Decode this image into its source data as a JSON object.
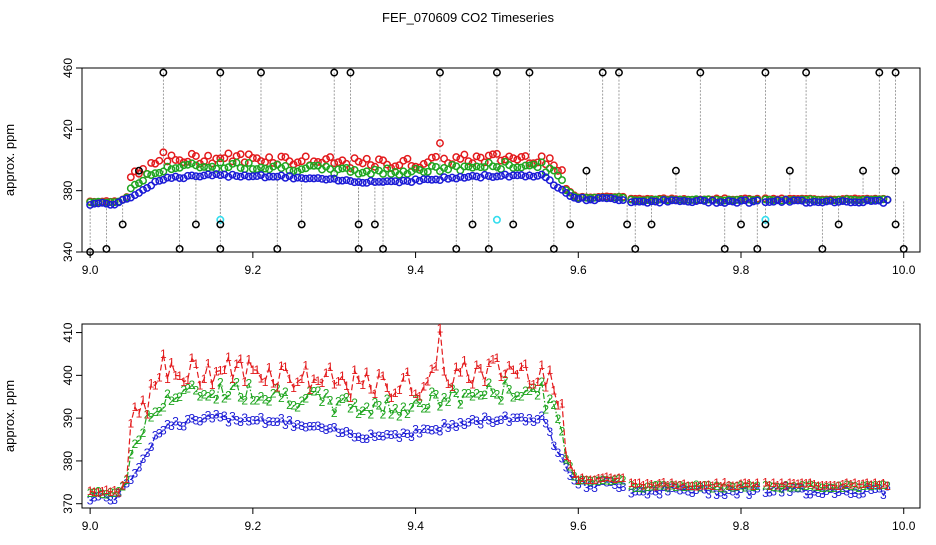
{
  "title": "FEF_070609  CO2 Timeseries",
  "colors": {
    "s1": "#e31a1c",
    "s2": "#1fa51f",
    "s3": "#1b1bd6",
    "outlier": "#000000",
    "flag": "#33ddee",
    "connector": "#888888"
  },
  "chart_data": [
    {
      "type": "scatter",
      "ylabel": "approx. ppm",
      "xlim": [
        8.99,
        10.02
      ],
      "ylim": [
        340,
        460
      ],
      "xticks": [
        "9.0",
        "9.2",
        "9.4",
        "9.6",
        "9.8",
        "10.0"
      ],
      "yticks": [
        "340",
        "380",
        "420",
        "460"
      ],
      "grid": false,
      "outlier_points": [
        [
          9.0,
          340
        ],
        [
          9.02,
          342
        ],
        [
          9.04,
          358
        ],
        [
          9.06,
          393
        ],
        [
          9.09,
          457
        ],
        [
          9.11,
          342
        ],
        [
          9.13,
          358
        ],
        [
          9.16,
          342
        ],
        [
          9.16,
          358
        ],
        [
          9.16,
          457
        ],
        [
          9.21,
          457
        ],
        [
          9.23,
          342
        ],
        [
          9.26,
          358
        ],
        [
          9.3,
          457
        ],
        [
          9.32,
          457
        ],
        [
          9.33,
          358
        ],
        [
          9.33,
          342
        ],
        [
          9.35,
          358
        ],
        [
          9.36,
          342
        ],
        [
          9.43,
          457
        ],
        [
          9.45,
          342
        ],
        [
          9.47,
          358
        ],
        [
          9.49,
          342
        ],
        [
          9.5,
          457
        ],
        [
          9.52,
          358
        ],
        [
          9.54,
          457
        ],
        [
          9.57,
          342
        ],
        [
          9.59,
          358
        ],
        [
          9.61,
          393
        ],
        [
          9.63,
          457
        ],
        [
          9.65,
          457
        ],
        [
          9.66,
          358
        ],
        [
          9.67,
          342
        ],
        [
          9.69,
          358
        ],
        [
          9.72,
          393
        ],
        [
          9.75,
          457
        ],
        [
          9.78,
          342
        ],
        [
          9.8,
          358
        ],
        [
          9.82,
          342
        ],
        [
          9.83,
          457
        ],
        [
          9.83,
          358
        ],
        [
          9.86,
          393
        ],
        [
          9.88,
          457
        ],
        [
          9.9,
          342
        ],
        [
          9.92,
          358
        ],
        [
          9.95,
          393
        ],
        [
          9.97,
          457
        ],
        [
          9.99,
          457
        ],
        [
          9.99,
          393
        ],
        [
          9.99,
          358
        ],
        [
          10.0,
          342
        ]
      ],
      "flag_points": [
        [
          9.16,
          361
        ],
        [
          9.5,
          361
        ],
        [
          9.83,
          361
        ]
      ]
    },
    {
      "type": "line",
      "ylabel": "approx. ppm",
      "xlim": [
        8.99,
        10.02
      ],
      "ylim": [
        369,
        412
      ],
      "xticks": [
        "9.0",
        "9.2",
        "9.4",
        "9.6",
        "9.8",
        "10.0"
      ],
      "yticks": [
        "370",
        "380",
        "390",
        "400",
        "410"
      ],
      "grid": false,
      "series": [
        {
          "marker": "1",
          "color_key": "s1",
          "line": "dashed",
          "values": []
        },
        {
          "marker": "2",
          "color_key": "s2",
          "line": "dotdash",
          "values": []
        },
        {
          "marker": "3",
          "color_key": "s3",
          "line": "dashed",
          "values": []
        }
      ],
      "x": []
    }
  ]
}
